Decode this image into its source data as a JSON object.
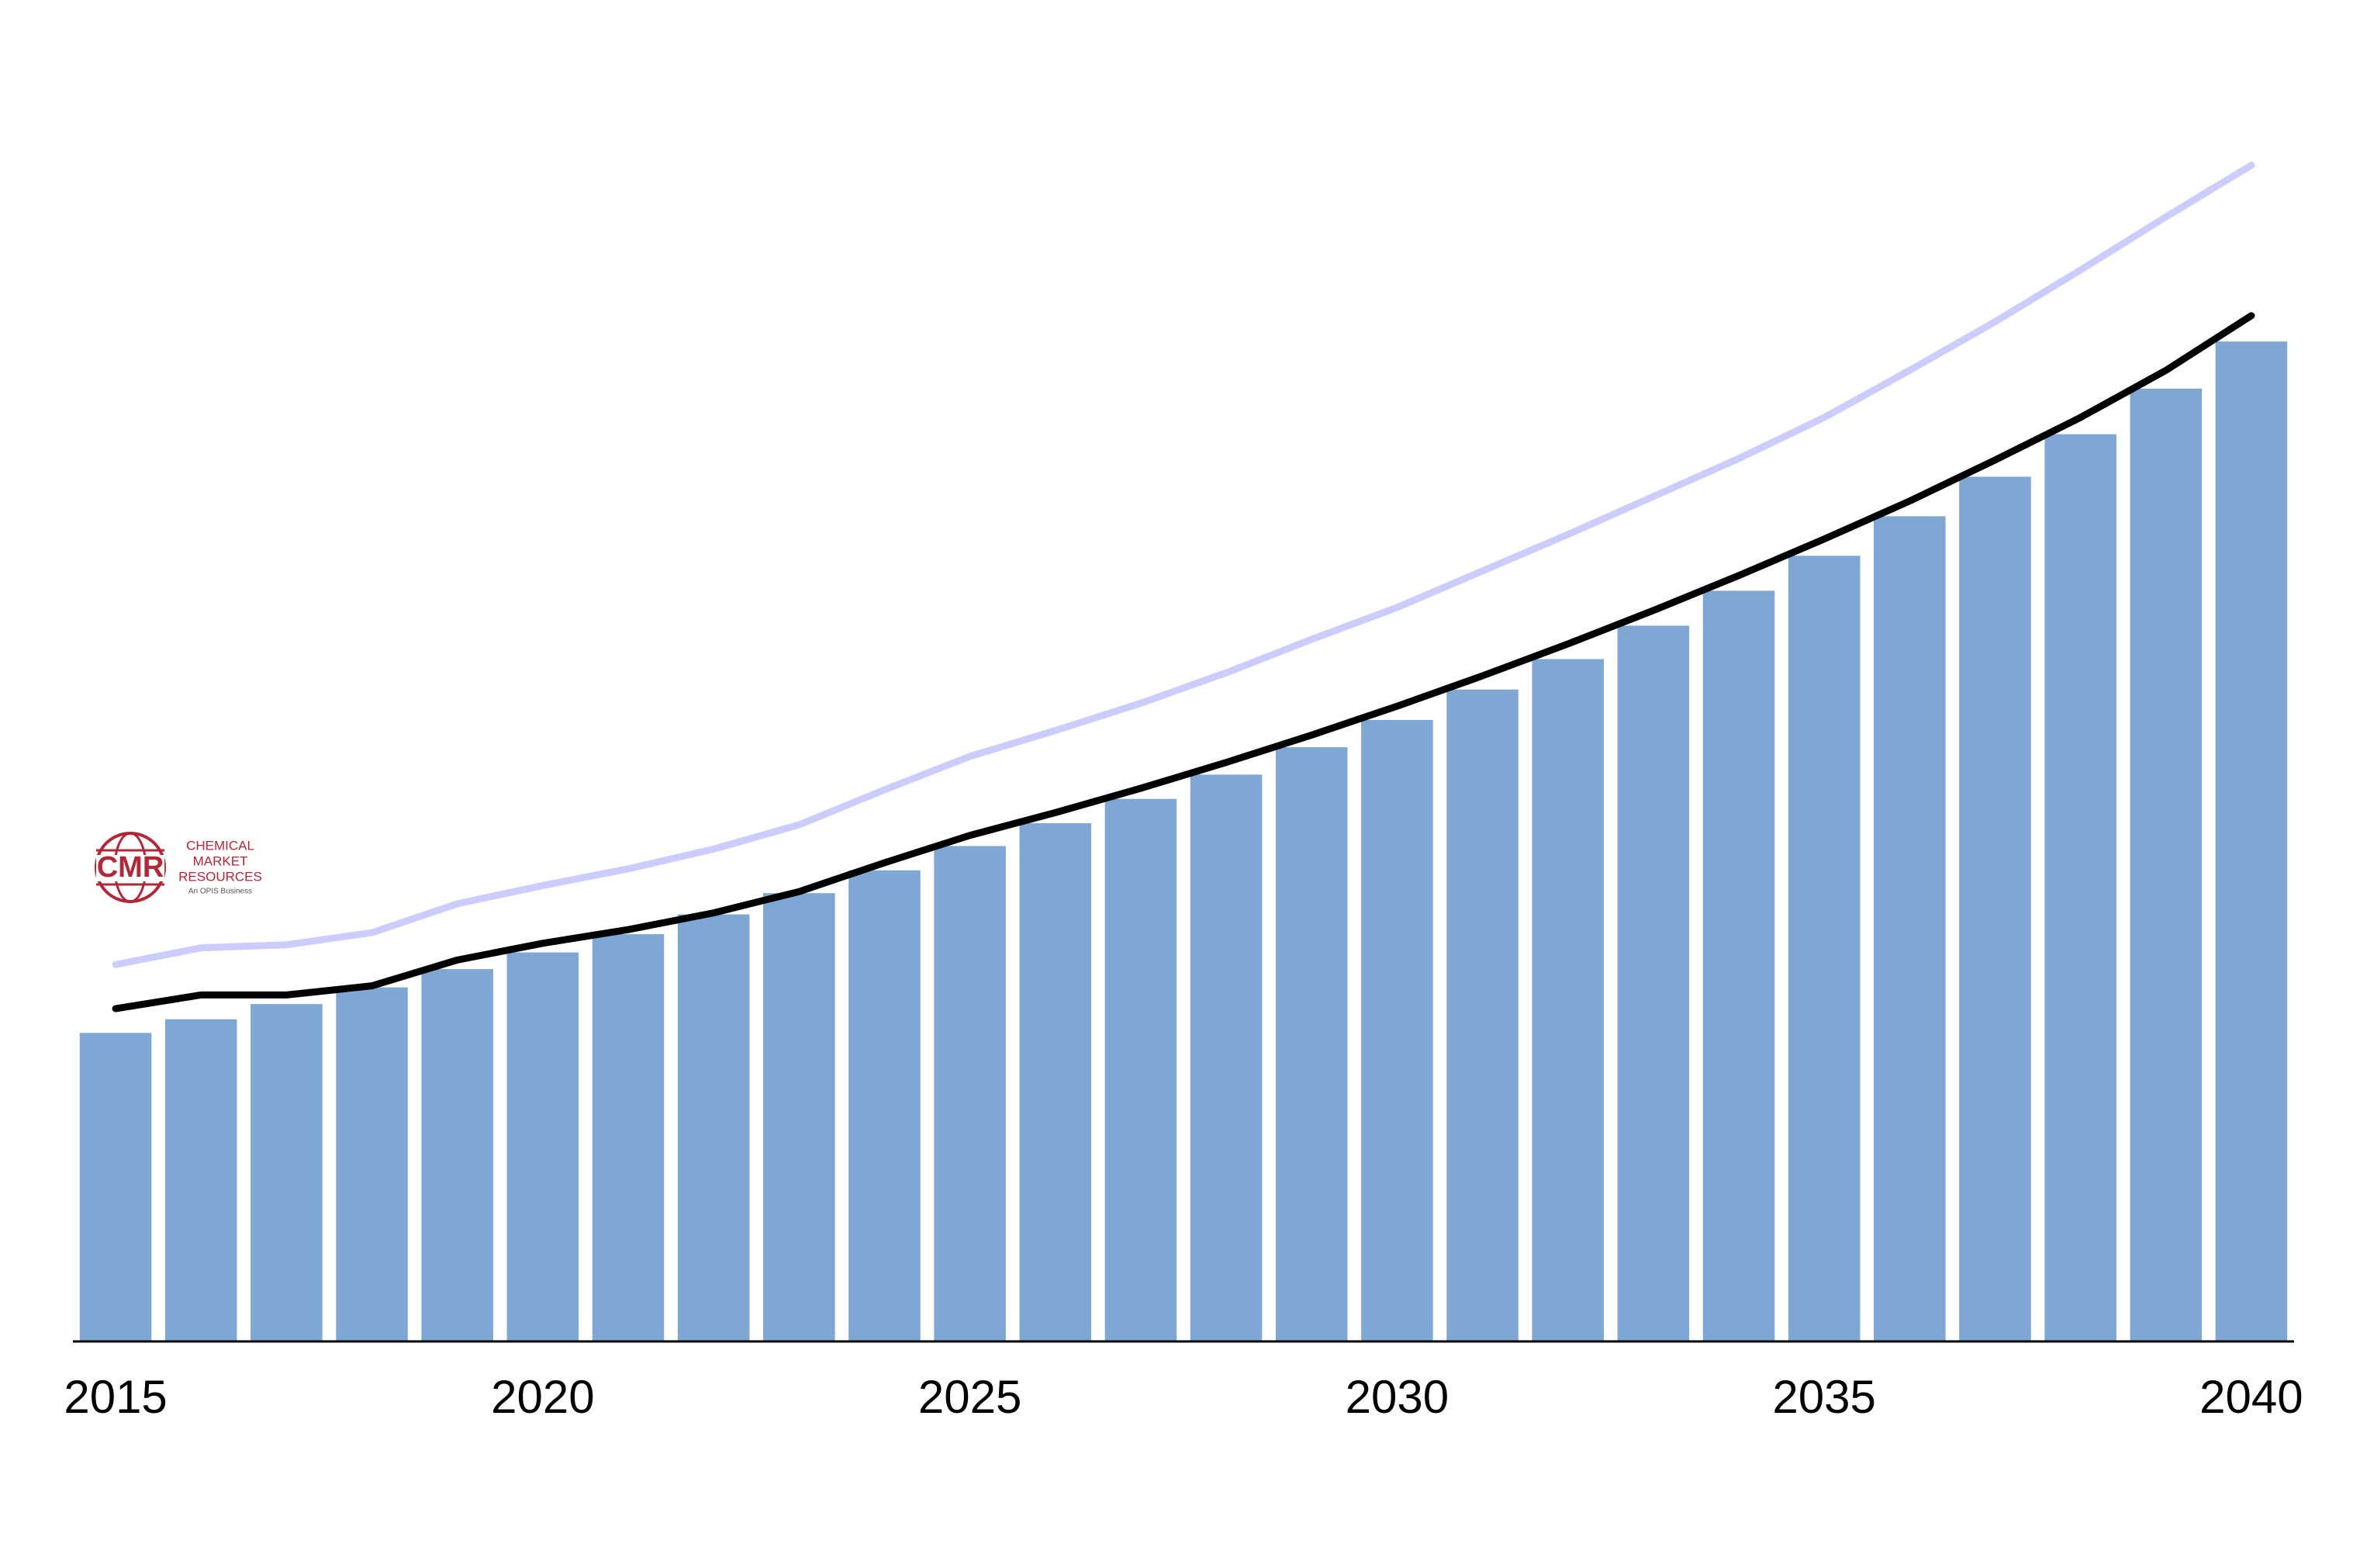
{
  "chart_data": {
    "type": "bar",
    "x": [
      2015,
      2016,
      2017,
      2018,
      2019,
      2020,
      2021,
      2022,
      2023,
      2024,
      2025,
      2026,
      2027,
      2028,
      2029,
      2030,
      2031,
      2032,
      2033,
      2034,
      2035,
      2036,
      2037,
      2038,
      2039,
      2040
    ],
    "values": [
      203,
      212,
      222,
      233,
      245,
      256,
      268,
      281,
      295,
      310,
      326,
      341,
      357,
      373,
      391,
      409,
      429,
      449,
      471,
      494,
      517,
      543,
      569,
      597,
      627,
      658
    ],
    "color": "#7fa7d3",
    "lines": [
      {
        "color": "#ccccff",
        "values": [
          248,
          259,
          261,
          269,
          288,
          300,
          311,
          324,
          340,
          363,
          385,
          402,
          420,
          440,
          462,
          483,
          507,
          531,
          556,
          581,
          608,
          639,
          671,
          705,
          740,
          774
        ]
      },
      {
        "color": "#000000",
        "values": [
          219,
          228,
          228,
          234,
          251,
          262,
          271,
          282,
          296,
          315,
          333,
          348,
          364,
          381,
          399,
          418,
          438,
          459,
          481,
          504,
          528,
          553,
          580,
          608,
          639,
          675
        ]
      }
    ],
    "xlim": [
      2014.5,
      2040.5
    ],
    "xticks": [
      2015,
      2020,
      2025,
      2030,
      2035,
      2040
    ],
    "ylim": [
      0,
      800
    ]
  },
  "logo": {
    "mark": "CMR",
    "lines": [
      "CHEMICAL",
      "MARKET",
      "RESOURCES"
    ],
    "tagline": "An OPIS Business"
  }
}
